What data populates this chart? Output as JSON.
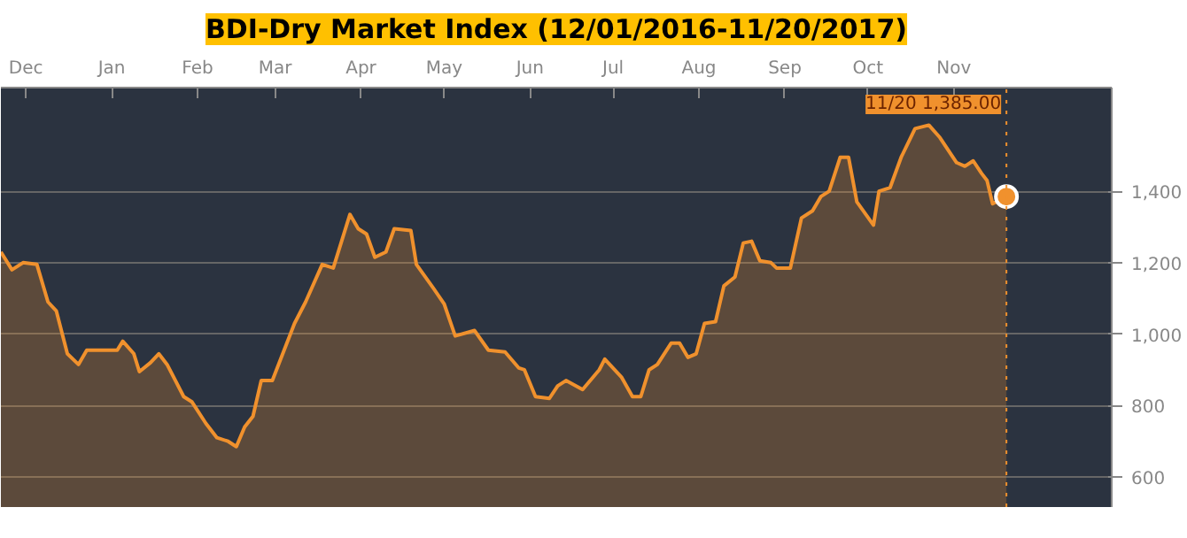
{
  "chart_data": {
    "type": "area",
    "title": "BDI-Dry Market Index (12/01/2016-11/20/2017)",
    "x": [
      "2016-11-22",
      "2016-11-26",
      "2016-11-30",
      "2016-12-05",
      "2016-12-09",
      "2016-12-12",
      "2016-12-16",
      "2016-12-20",
      "2016-12-23",
      "2017-01-03",
      "2017-01-05",
      "2017-01-09",
      "2017-01-11",
      "2017-01-15",
      "2017-01-18",
      "2017-01-21",
      "2017-01-27",
      "2017-01-30",
      "2017-02-04",
      "2017-02-08",
      "2017-02-12",
      "2017-02-15",
      "2017-02-18",
      "2017-02-21",
      "2017-02-24",
      "2017-02-28",
      "2017-03-04",
      "2017-03-08",
      "2017-03-12",
      "2017-03-18",
      "2017-03-22",
      "2017-03-25",
      "2017-03-28",
      "2017-03-31",
      "2017-04-03",
      "2017-04-06",
      "2017-04-10",
      "2017-04-13",
      "2017-04-19",
      "2017-04-21",
      "2017-04-27",
      "2017-05-01",
      "2017-05-05",
      "2017-05-12",
      "2017-05-17",
      "2017-05-23",
      "2017-05-28",
      "2017-05-30",
      "2017-06-03",
      "2017-06-08",
      "2017-06-11",
      "2017-06-14",
      "2017-06-20",
      "2017-06-26",
      "2017-06-28",
      "2017-07-04",
      "2017-07-08",
      "2017-07-11",
      "2017-07-14",
      "2017-07-17",
      "2017-07-22",
      "2017-07-25",
      "2017-07-28",
      "2017-07-31",
      "2017-08-03",
      "2017-08-07",
      "2017-08-10",
      "2017-08-14",
      "2017-08-17",
      "2017-08-20",
      "2017-08-23",
      "2017-08-27",
      "2017-08-29",
      "2017-09-03",
      "2017-09-07",
      "2017-09-11",
      "2017-09-14",
      "2017-09-17",
      "2017-09-21",
      "2017-09-24",
      "2017-09-27",
      "2017-10-03",
      "2017-10-05",
      "2017-10-09",
      "2017-10-13",
      "2017-10-18",
      "2017-10-23",
      "2017-10-27",
      "2017-11-02",
      "2017-11-05",
      "2017-11-08",
      "2017-11-11",
      "2017-11-13",
      "2017-11-15",
      "2017-11-20"
    ],
    "series": [
      {
        "color": "#f0912d",
        "values": [
          1230,
          1180,
          1200,
          1195,
          1090,
          1065,
          945,
          915,
          955,
          955,
          980,
          945,
          895,
          920,
          945,
          915,
          825,
          810,
          750,
          710,
          700,
          685,
          740,
          770,
          870,
          870,
          950,
          1030,
          1090,
          1195,
          1185,
          1260,
          1335,
          1295,
          1280,
          1215,
          1230,
          1295,
          1290,
          1195,
          1130,
          1085,
          995,
          1010,
          955,
          950,
          905,
          900,
          825,
          820,
          855,
          870,
          845,
          900,
          930,
          880,
          825,
          825,
          900,
          915,
          975,
          975,
          935,
          945,
          1030,
          1035,
          1135,
          1160,
          1255,
          1260,
          1205,
          1200,
          1185,
          1185,
          1325,
          1345,
          1385,
          1400,
          1495,
          1495,
          1370,
          1305,
          1400,
          1410,
          1495,
          1575,
          1585,
          1550,
          1480,
          1470,
          1485,
          1450,
          1430,
          1365,
          1385
        ]
      },
      {
        "type": "scatter",
        "marker": "circle",
        "color": "#f0912d",
        "x": [
          "2017-11-20"
        ],
        "values": [
          1385
        ]
      }
    ],
    "xlim": [
      "2016-11-22",
      "2017-12-28"
    ],
    "xticks": [
      {
        "value": "2016-12-01",
        "label": "Dec"
      },
      {
        "value": "2017-01-01",
        "label": "Jan"
      },
      {
        "value": "2017-02-01",
        "label": "Feb"
      },
      {
        "value": "2017-03-01",
        "label": "Mar"
      },
      {
        "value": "2017-04-01",
        "label": "Apr"
      },
      {
        "value": "2017-05-01",
        "label": "May"
      },
      {
        "value": "2017-06-01",
        "label": "Jun"
      },
      {
        "value": "2017-07-01",
        "label": "Jul"
      },
      {
        "value": "2017-08-01",
        "label": "Aug"
      },
      {
        "value": "2017-09-01",
        "label": "Sep"
      },
      {
        "value": "2017-10-01",
        "label": "Oct"
      },
      {
        "value": "2017-11-01",
        "label": "Nov"
      }
    ],
    "ylim": [
      516,
      1690
    ],
    "yticks": [
      {
        "value": 600,
        "label": "600"
      },
      {
        "value": 800,
        "label": "800"
      },
      {
        "value": 1000,
        "label": "1,000"
      },
      {
        "value": 1200,
        "label": "1,200"
      },
      {
        "value": 1400,
        "label": "1,400"
      }
    ],
    "ref_lines": [
      {
        "axis": "x",
        "value": "2017-11-20",
        "label": "11/20 1,385.00",
        "color": "#f0912d",
        "line_style": "dotted"
      }
    ],
    "grid": "y"
  }
}
